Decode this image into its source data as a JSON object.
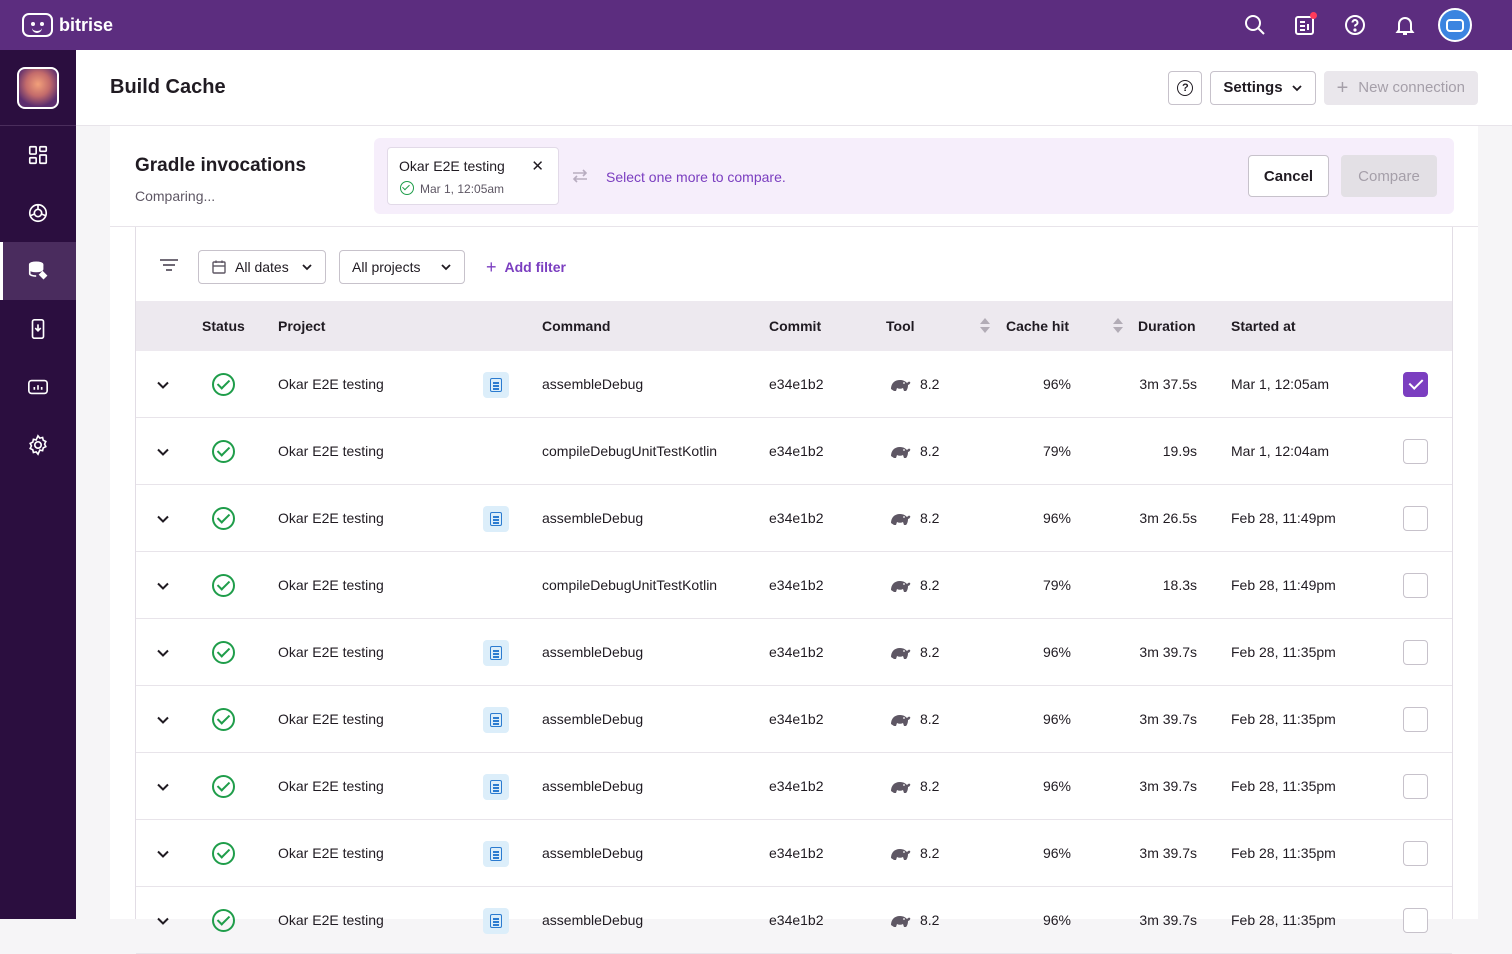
{
  "topbar": {
    "brand": "bitrise",
    "icons": [
      "search-icon",
      "release-notes-icon",
      "help-icon",
      "bell-icon",
      "user-avatar"
    ]
  },
  "sidebar": {
    "items": [
      {
        "icon": "dashboard-icon",
        "active": false
      },
      {
        "icon": "insights-icon",
        "active": false
      },
      {
        "icon": "build-cache-icon",
        "active": true
      },
      {
        "icon": "device-icon",
        "active": false
      },
      {
        "icon": "analytics-icon",
        "active": false
      },
      {
        "icon": "settings-icon",
        "active": false
      }
    ]
  },
  "header": {
    "title": "Build Cache",
    "help_label": "?",
    "settings_label": "Settings",
    "new_connection_label": "New connection"
  },
  "compare": {
    "title": "Gradle invocations",
    "subtitle": "Comparing...",
    "chip": {
      "name": "Okar E2E testing",
      "date": "Mar 1, 12:05am"
    },
    "hint": "Select one more to compare.",
    "cancel_label": "Cancel",
    "compare_label": "Compare"
  },
  "filters": {
    "dates_label": "All dates",
    "projects_label": "All projects",
    "add_filter_label": "Add filter"
  },
  "table": {
    "headers": {
      "status": "Status",
      "project": "Project",
      "command": "Command",
      "commit": "Commit",
      "tool": "Tool",
      "cache_hit": "Cache hit",
      "duration": "Duration",
      "started_at": "Started at"
    },
    "rows": [
      {
        "project": "Okar E2E testing",
        "has_log": true,
        "command": "assembleDebug",
        "commit": "e34e1b2",
        "tool": "8.2",
        "cache_hit": "96%",
        "duration": "3m 37.5s",
        "started_at": "Mar 1, 12:05am",
        "checked": true
      },
      {
        "project": "Okar E2E testing",
        "has_log": false,
        "command": "compileDebugUnitTestKotlin",
        "commit": "e34e1b2",
        "tool": "8.2",
        "cache_hit": "79%",
        "duration": "19.9s",
        "started_at": "Mar 1, 12:04am",
        "checked": false
      },
      {
        "project": "Okar E2E testing",
        "has_log": true,
        "command": "assembleDebug",
        "commit": "e34e1b2",
        "tool": "8.2",
        "cache_hit": "96%",
        "duration": "3m 26.5s",
        "started_at": "Feb 28, 11:49pm",
        "checked": false
      },
      {
        "project": "Okar E2E testing",
        "has_log": false,
        "command": "compileDebugUnitTestKotlin",
        "commit": "e34e1b2",
        "tool": "8.2",
        "cache_hit": "79%",
        "duration": "18.3s",
        "started_at": "Feb 28, 11:49pm",
        "checked": false
      },
      {
        "project": "Okar E2E testing",
        "has_log": true,
        "command": "assembleDebug",
        "commit": "e34e1b2",
        "tool": "8.2",
        "cache_hit": "96%",
        "duration": "3m 39.7s",
        "started_at": "Feb 28, 11:35pm",
        "checked": false
      },
      {
        "project": "Okar E2E testing",
        "has_log": true,
        "command": "assembleDebug",
        "commit": "e34e1b2",
        "tool": "8.2",
        "cache_hit": "96%",
        "duration": "3m 39.7s",
        "started_at": "Feb 28, 11:35pm",
        "checked": false
      },
      {
        "project": "Okar E2E testing",
        "has_log": true,
        "command": "assembleDebug",
        "commit": "e34e1b2",
        "tool": "8.2",
        "cache_hit": "96%",
        "duration": "3m 39.7s",
        "started_at": "Feb 28, 11:35pm",
        "checked": false
      },
      {
        "project": "Okar E2E testing",
        "has_log": true,
        "command": "assembleDebug",
        "commit": "e34e1b2",
        "tool": "8.2",
        "cache_hit": "96%",
        "duration": "3m 39.7s",
        "started_at": "Feb 28, 11:35pm",
        "checked": false
      },
      {
        "project": "Okar E2E testing",
        "has_log": true,
        "command": "assembleDebug",
        "commit": "e34e1b2",
        "tool": "8.2",
        "cache_hit": "96%",
        "duration": "3m 39.7s",
        "started_at": "Feb 28, 11:35pm",
        "checked": false
      }
    ]
  },
  "colors": {
    "brand_purple": "#5c2d7f",
    "sidebar_bg": "#2b0e3f",
    "accent": "#7b3ec0",
    "success": "#1f9d4a"
  }
}
